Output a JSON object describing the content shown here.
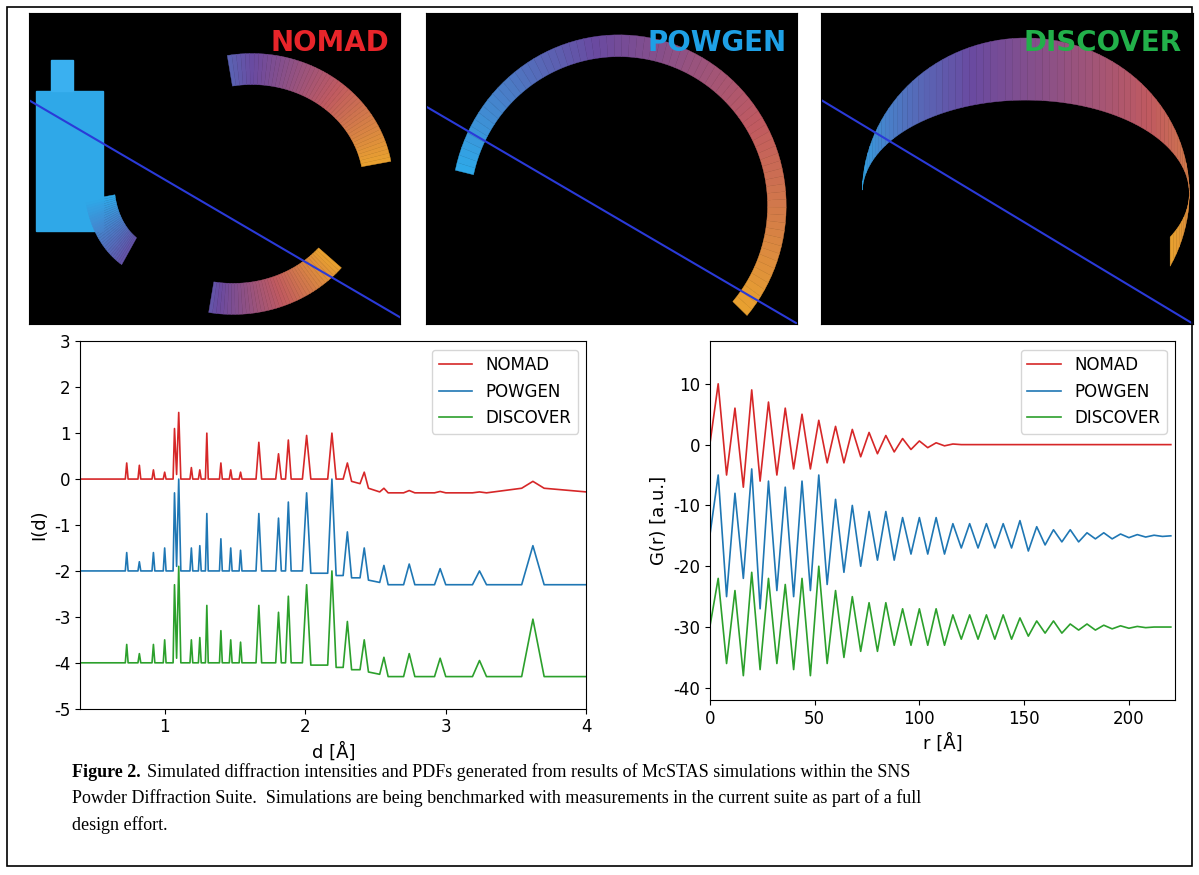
{
  "images": [
    {
      "label": "NOMAD",
      "color": "#e8252a"
    },
    {
      "label": "POWGEN",
      "color": "#1ea0e6"
    },
    {
      "label": "DISCOVER",
      "color": "#22b04a"
    }
  ],
  "chart_data": [
    {
      "type": "line",
      "xlabel": "d [Å]",
      "ylabel": "I(d)",
      "xlim": [
        0.4,
        4
      ],
      "xticks": [
        1,
        2,
        3,
        4
      ],
      "ylim": [
        -5,
        3
      ],
      "yticks": [
        -5,
        -4,
        -3,
        -2,
        -1,
        0,
        1,
        2,
        3
      ],
      "grid": false,
      "legend": "upper right",
      "x": [
        0.4,
        0.72,
        0.73,
        0.74,
        0.81,
        0.82,
        0.83,
        0.91,
        0.92,
        0.93,
        0.99,
        1.0,
        1.01,
        1.06,
        1.07,
        1.085,
        1.1,
        1.115,
        1.18,
        1.19,
        1.2,
        1.24,
        1.25,
        1.26,
        1.29,
        1.3,
        1.31,
        1.39,
        1.4,
        1.41,
        1.46,
        1.47,
        1.48,
        1.53,
        1.54,
        1.55,
        1.65,
        1.67,
        1.69,
        1.79,
        1.81,
        1.83,
        1.86,
        1.88,
        1.9,
        1.98,
        2.01,
        2.04,
        2.16,
        2.19,
        2.22,
        2.27,
        2.3,
        2.33,
        2.39,
        2.42,
        2.45,
        2.53,
        2.56,
        2.59,
        2.7,
        2.74,
        2.78,
        2.92,
        2.96,
        3.0,
        3.19,
        3.24,
        3.29,
        3.54,
        3.62,
        3.7,
        4.0
      ],
      "series": [
        {
          "name": "NOMAD",
          "color": "#d62728",
          "values": [
            0,
            0,
            0.35,
            0,
            0,
            0.3,
            0,
            0,
            0.2,
            0,
            0,
            0.15,
            0,
            0,
            1.1,
            0.1,
            1.45,
            0,
            0,
            0.25,
            0,
            0,
            0.2,
            0,
            0,
            1.0,
            0,
            0,
            0.35,
            0,
            0,
            0.2,
            0,
            0,
            0.15,
            0,
            0,
            0.8,
            0,
            0,
            0.55,
            0,
            0,
            0.85,
            0,
            0,
            0.95,
            0,
            0,
            1.0,
            0,
            0,
            0.35,
            -0.05,
            -0.1,
            0.15,
            -0.2,
            -0.28,
            -0.2,
            -0.3,
            -0.3,
            -0.25,
            -0.3,
            -0.3,
            -0.27,
            -0.3,
            -0.3,
            -0.28,
            -0.3,
            -0.2,
            -0.05,
            -0.2,
            -0.28
          ]
        },
        {
          "name": "POWGEN",
          "color": "#1f77b4",
          "values": [
            -2.0,
            -2.0,
            -1.6,
            -2.0,
            -2.0,
            -1.8,
            -2.0,
            -2.0,
            -1.6,
            -2.0,
            -2.0,
            -1.5,
            -2.0,
            -2.0,
            -0.3,
            -1.9,
            0.0,
            -2.0,
            -2.0,
            -1.5,
            -2.0,
            -2.0,
            -1.45,
            -2.0,
            -2.0,
            -0.75,
            -2.0,
            -2.0,
            -1.3,
            -2.0,
            -2.0,
            -1.5,
            -2.0,
            -2.0,
            -1.55,
            -2.0,
            -2.0,
            -0.75,
            -2.0,
            -2.0,
            -0.85,
            -2.0,
            -2.0,
            -0.5,
            -2.0,
            -2.0,
            -0.3,
            -2.05,
            -2.05,
            0.0,
            -2.1,
            -2.1,
            -1.15,
            -2.15,
            -2.15,
            -1.5,
            -2.2,
            -2.25,
            -1.88,
            -2.3,
            -2.3,
            -1.85,
            -2.3,
            -2.3,
            -1.95,
            -2.3,
            -2.3,
            -2.0,
            -2.3,
            -2.3,
            -1.45,
            -2.3,
            -2.3
          ]
        },
        {
          "name": "DISCOVER",
          "color": "#2ca02c",
          "values": [
            -4.0,
            -4.0,
            -3.6,
            -4.0,
            -4.0,
            -3.8,
            -4.0,
            -4.0,
            -3.6,
            -4.0,
            -4.0,
            -3.5,
            -4.0,
            -4.0,
            -2.3,
            -3.9,
            -1.9,
            -4.0,
            -4.0,
            -3.5,
            -4.0,
            -4.0,
            -3.45,
            -4.0,
            -4.0,
            -2.75,
            -4.0,
            -4.0,
            -3.3,
            -4.0,
            -4.0,
            -3.5,
            -4.0,
            -4.0,
            -3.55,
            -4.0,
            -4.0,
            -2.75,
            -4.0,
            -4.0,
            -2.9,
            -4.0,
            -4.0,
            -2.55,
            -4.0,
            -4.0,
            -2.3,
            -4.05,
            -4.05,
            -2.0,
            -4.1,
            -4.1,
            -3.1,
            -4.15,
            -4.15,
            -3.5,
            -4.2,
            -4.25,
            -3.88,
            -4.3,
            -4.3,
            -3.8,
            -4.3,
            -4.3,
            -3.9,
            -4.3,
            -4.3,
            -3.95,
            -4.3,
            -4.3,
            -3.05,
            -4.3,
            -4.3
          ]
        }
      ]
    },
    {
      "type": "line",
      "xlabel": "r [Å]",
      "ylabel": "G(r) [a.u.]",
      "xlim": [
        0,
        222
      ],
      "xticks": [
        0,
        50,
        100,
        150,
        200
      ],
      "ylim": [
        -42,
        17
      ],
      "yticks": [
        -40,
        -30,
        -20,
        -10,
        0,
        10
      ],
      "grid": false,
      "legend": "upper right",
      "x": [
        0,
        4,
        8,
        12,
        16,
        20,
        24,
        28,
        32,
        36,
        40,
        44,
        48,
        52,
        56,
        60,
        64,
        68,
        72,
        76,
        80,
        84,
        88,
        92,
        96,
        100,
        104,
        108,
        112,
        116,
        120,
        124,
        128,
        132,
        136,
        140,
        144,
        148,
        152,
        156,
        160,
        164,
        168,
        172,
        176,
        180,
        184,
        188,
        192,
        196,
        200,
        204,
        208,
        212,
        216,
        220
      ],
      "series": [
        {
          "name": "NOMAD",
          "color": "#d62728",
          "values": [
            0,
            10,
            -5,
            6,
            -7,
            9,
            -6,
            7,
            -5,
            6,
            -4,
            5,
            -4,
            4,
            -3,
            3,
            -3,
            2.5,
            -2,
            2,
            -1.5,
            1.5,
            -1.2,
            1,
            -0.8,
            0.6,
            -0.5,
            0.3,
            -0.2,
            0.1,
            0,
            0,
            0,
            0,
            0,
            0,
            0,
            0,
            0,
            0,
            0,
            0,
            0,
            0,
            0,
            0,
            0,
            0,
            0,
            0,
            0,
            0,
            0,
            0,
            0,
            0
          ]
        },
        {
          "name": "POWGEN",
          "color": "#1f77b4",
          "values": [
            -15,
            -5,
            -25,
            -8,
            -22,
            -4,
            -27,
            -6,
            -24,
            -7,
            -25,
            -6,
            -24,
            -5,
            -23,
            -9,
            -21,
            -10,
            -20,
            -11,
            -19,
            -11,
            -19,
            -12,
            -18,
            -12,
            -18,
            -12,
            -18,
            -13,
            -17,
            -13,
            -17,
            -13,
            -17,
            -13,
            -17,
            -12.5,
            -17.5,
            -13.5,
            -16.5,
            -14,
            -16,
            -14,
            -16,
            -14.5,
            -15.5,
            -14.5,
            -15.5,
            -14.7,
            -15.3,
            -14.8,
            -15.2,
            -14.9,
            -15.1,
            -15
          ]
        },
        {
          "name": "DISCOVER",
          "color": "#2ca02c",
          "values": [
            -30,
            -22,
            -36,
            -24,
            -38,
            -21,
            -37,
            -22,
            -36,
            -23,
            -37,
            -22,
            -38,
            -20,
            -36,
            -24,
            -35,
            -25,
            -34,
            -26,
            -34,
            -26,
            -33,
            -27,
            -33,
            -27,
            -33,
            -27,
            -33,
            -28,
            -32,
            -28,
            -32,
            -28,
            -32,
            -28,
            -32,
            -28.5,
            -31.5,
            -29,
            -31,
            -29,
            -31,
            -29.5,
            -30.5,
            -29.5,
            -30.5,
            -29.7,
            -30.3,
            -29.8,
            -30.2,
            -29.9,
            -30.1,
            -30,
            -30,
            -30
          ]
        }
      ]
    }
  ],
  "caption": {
    "label": "Figure 2.",
    "lines": [
      "Simulated diffraction intensities and PDFs generated from results of McSTAS simulations within the SNS",
      "Powder Diffraction Suite.  Simulations are being benchmarked with measurements in the current suite as part of a full",
      "design effort."
    ]
  }
}
